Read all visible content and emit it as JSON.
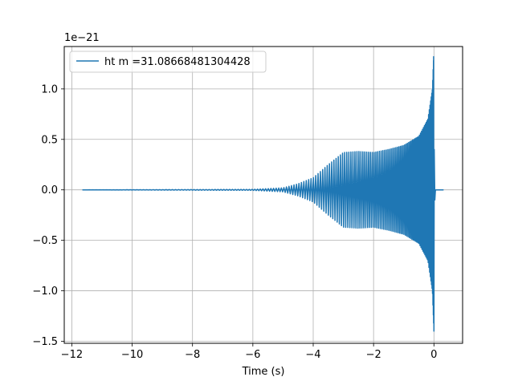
{
  "chart_data": {
    "type": "line",
    "xlabel": "Time (s)",
    "ylabel": "",
    "y_offset_label": "1e−21",
    "y_scale_exponent": -21,
    "xlim": [
      -12.25,
      0.95
    ],
    "ylim": [
      -1.52,
      1.42
    ],
    "x_ticks": [
      -12,
      -10,
      -8,
      -6,
      -4,
      -2,
      0
    ],
    "x_tick_labels": [
      "−12",
      "−10",
      "−8",
      "−6",
      "−4",
      "−2",
      "0"
    ],
    "y_ticks": [
      -1.5,
      -1.0,
      -0.5,
      0.0,
      0.5,
      1.0
    ],
    "y_tick_labels": [
      "−1.5",
      "−1.0",
      "−0.5",
      "0.0",
      "0.5",
      "1.0"
    ],
    "grid": true,
    "legend_position": "upper-left",
    "series": [
      {
        "name": "ht m =31.08668481304428",
        "color": "#1f77b4",
        "x_range": [
          -11.65,
          0.32
        ],
        "merger_time": 0.0,
        "envelope": [
          {
            "x": -11.65,
            "y": 0.0
          },
          {
            "x": -6.0,
            "y": 0.005
          },
          {
            "x": -5.0,
            "y": 0.02
          },
          {
            "x": -4.5,
            "y": 0.06
          },
          {
            "x": -4.0,
            "y": 0.12
          },
          {
            "x": -3.5,
            "y": 0.25
          },
          {
            "x": -3.0,
            "y": 0.37
          },
          {
            "x": -2.5,
            "y": 0.38
          },
          {
            "x": -2.0,
            "y": 0.37
          },
          {
            "x": -1.5,
            "y": 0.4
          },
          {
            "x": -1.0,
            "y": 0.44
          },
          {
            "x": -0.5,
            "y": 0.53
          },
          {
            "x": -0.2,
            "y": 0.7
          },
          {
            "x": -0.05,
            "y": 1.0
          },
          {
            "x": -0.01,
            "y": 1.32
          },
          {
            "x": 0.0,
            "y": -1.4
          },
          {
            "x": 0.05,
            "y": 0.0
          },
          {
            "x": 0.32,
            "y": 0.0
          }
        ]
      }
    ]
  }
}
